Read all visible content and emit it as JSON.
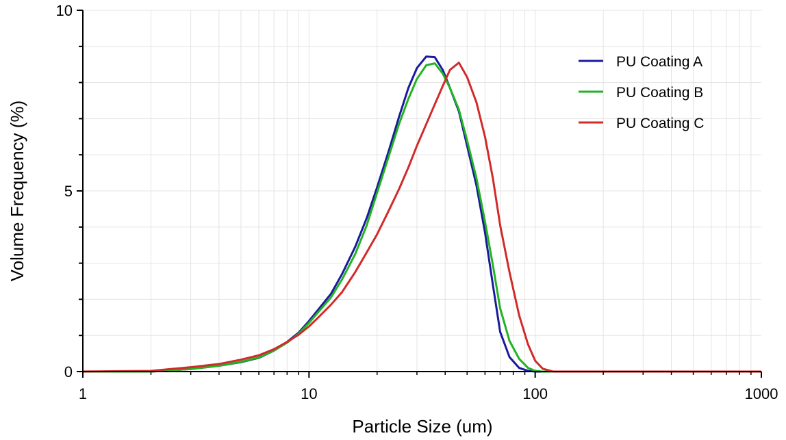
{
  "chart_data": {
    "type": "line",
    "title": "",
    "xlabel": "Particle Size (um)",
    "ylabel": "Volume Frequency (%)",
    "xscale": "log",
    "xlim": [
      1,
      1000
    ],
    "ylim": [
      0,
      10
    ],
    "x_ticks": [
      "1",
      "10",
      "100",
      "1000"
    ],
    "y_ticks": [
      "0",
      "5",
      "10"
    ],
    "grid": true,
    "legend_position": "top-right",
    "series": [
      {
        "name": "PU Coating A",
        "color": "#1a1a9c",
        "x": [
          1,
          2,
          3,
          4,
          5,
          6,
          7,
          8,
          9,
          10,
          11,
          12.5,
          14,
          16,
          18,
          20,
          22.5,
          25,
          27.5,
          30,
          33,
          36,
          39,
          42,
          46,
          50,
          55,
          60,
          65,
          70,
          77,
          85,
          93,
          100,
          108,
          120,
          200,
          500,
          1000
        ],
        "y": [
          0,
          0,
          0.07,
          0.16,
          0.26,
          0.38,
          0.58,
          0.82,
          1.08,
          1.4,
          1.72,
          2.15,
          2.7,
          3.45,
          4.25,
          5.1,
          6.1,
          7.05,
          7.85,
          8.4,
          8.72,
          8.7,
          8.35,
          7.85,
          7.2,
          6.25,
          5.15,
          3.85,
          2.4,
          1.1,
          0.4,
          0.1,
          0.02,
          0,
          0,
          0,
          0,
          0,
          0
        ]
      },
      {
        "name": "PU Coating B",
        "color": "#22b322",
        "x": [
          1,
          2,
          3,
          4,
          5,
          6,
          7,
          8,
          9,
          10,
          11,
          12.5,
          14,
          16,
          18,
          20,
          22.5,
          25,
          27.5,
          30,
          33,
          36,
          39,
          42,
          46,
          50,
          55,
          60,
          65,
          70,
          77,
          85,
          93,
          100,
          108,
          120,
          200,
          500,
          1000
        ],
        "y": [
          0,
          0,
          0.07,
          0.16,
          0.27,
          0.39,
          0.58,
          0.8,
          1.05,
          1.35,
          1.65,
          2.05,
          2.55,
          3.25,
          4.05,
          4.95,
          5.95,
          6.85,
          7.55,
          8.1,
          8.48,
          8.53,
          8.25,
          7.85,
          7.25,
          6.4,
          5.35,
          4.15,
          2.95,
          1.75,
          0.85,
          0.35,
          0.1,
          0.02,
          0,
          0,
          0,
          0,
          0
        ]
      },
      {
        "name": "PU Coating C",
        "color": "#d12a2a",
        "x": [
          1,
          2,
          3,
          4,
          5,
          6,
          7,
          8,
          9,
          10,
          11,
          12.5,
          14,
          16,
          18,
          20,
          22.5,
          25,
          27.5,
          30,
          33,
          36,
          39,
          42,
          46,
          50,
          55,
          60,
          65,
          70,
          77,
          85,
          93,
          100,
          108,
          120,
          200,
          500,
          1000
        ],
        "y": [
          0,
          0.02,
          0.12,
          0.21,
          0.33,
          0.45,
          0.62,
          0.82,
          1.02,
          1.25,
          1.5,
          1.85,
          2.2,
          2.75,
          3.3,
          3.8,
          4.45,
          5.05,
          5.65,
          6.25,
          6.85,
          7.4,
          7.9,
          8.35,
          8.55,
          8.15,
          7.45,
          6.5,
          5.35,
          4.05,
          2.75,
          1.55,
          0.75,
          0.3,
          0.08,
          0,
          0,
          0,
          0
        ]
      }
    ]
  }
}
